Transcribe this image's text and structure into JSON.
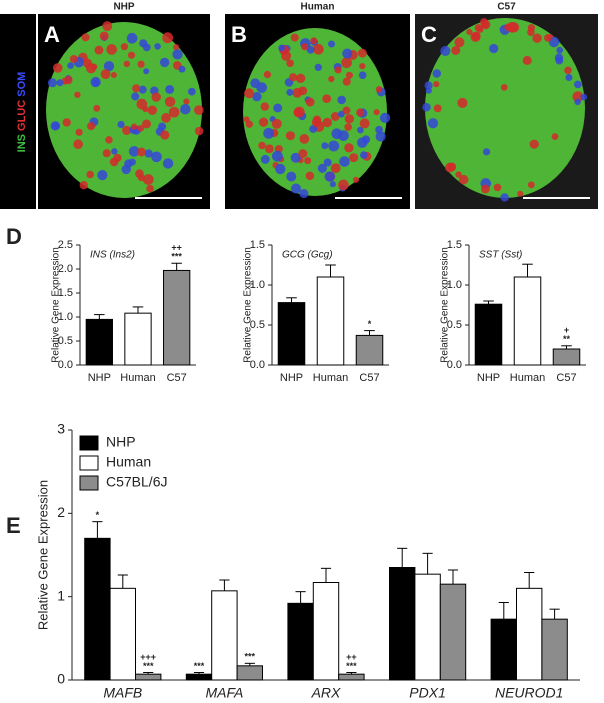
{
  "figure": {
    "panel_labels": [
      "A",
      "B",
      "C",
      "D",
      "E"
    ],
    "image_titles": [
      "NHP",
      "Human",
      "C57"
    ],
    "stain_labels": [
      "INS",
      "GLUC",
      "SOM"
    ]
  },
  "chart_data": [
    {
      "type": "bar",
      "title": "INS (Ins2)",
      "y_label": "Relative Gene Expression",
      "categories": [
        "NHP",
        "Human",
        "C57"
      ],
      "values": [
        0.95,
        1.08,
        1.97
      ],
      "errors": [
        0.1,
        0.13,
        0.15
      ],
      "colors": [
        "#000000",
        "#ffffff",
        "#8c8c8c"
      ],
      "annotations": [
        null,
        null,
        [
          "++",
          "***"
        ]
      ],
      "ylim": [
        0,
        2.5
      ],
      "yticks": [
        {
          "value": 0,
          "label": "0.0"
        },
        0.5,
        {
          "value": 1,
          "label": "1.0"
        },
        1.5,
        {
          "value": 2,
          "label": "2.0"
        },
        2.5
      ]
    },
    {
      "type": "bar",
      "title": "GCG (Gcg)",
      "y_label": "Relative Gene Expression",
      "categories": [
        "NHP",
        "Human",
        "C57"
      ],
      "values": [
        0.78,
        1.1,
        0.37
      ],
      "errors": [
        0.06,
        0.15,
        0.06
      ],
      "colors": [
        "#000000",
        "#ffffff",
        "#8c8c8c"
      ],
      "annotations": [
        null,
        null,
        [
          "*"
        ]
      ],
      "ylim": [
        0,
        1.5
      ],
      "yticks": [
        {
          "value": 0,
          "label": "0.0"
        },
        0.5,
        {
          "value": 1,
          "label": "1.0"
        },
        1.5
      ]
    },
    {
      "type": "bar",
      "title": "SST (Sst)",
      "y_label": "Relative Gene Expression",
      "categories": [
        "NHP",
        "Human",
        "C57"
      ],
      "values": [
        0.76,
        1.1,
        0.2
      ],
      "errors": [
        0.04,
        0.16,
        0.04
      ],
      "colors": [
        "#000000",
        "#ffffff",
        "#8c8c8c"
      ],
      "annotations": [
        null,
        null,
        [
          "+",
          "**"
        ]
      ],
      "ylim": [
        0,
        1.5
      ],
      "yticks": [
        {
          "value": 0,
          "label": "0.0"
        },
        0.5,
        {
          "value": 1,
          "label": "1.0"
        },
        1.5
      ]
    },
    {
      "type": "grouped_bar",
      "y_label": "Relative Gene Expression",
      "legend": "upper-left",
      "categories": [
        "MAFB",
        "MAFA",
        "ARX",
        "PDX1",
        "NEUROD1"
      ],
      "series": [
        {
          "name": "NHP",
          "color": "#000000",
          "values": [
            1.7,
            0.07,
            0.92,
            1.35,
            0.73
          ],
          "errors": [
            0.2,
            0.02,
            0.14,
            0.23,
            0.2
          ],
          "annotations": [
            [
              "*"
            ],
            [
              "***"
            ],
            null,
            null,
            null
          ]
        },
        {
          "name": "Human",
          "color": "#ffffff",
          "values": [
            1.1,
            1.07,
            1.17,
            1.27,
            1.1
          ],
          "errors": [
            0.16,
            0.13,
            0.17,
            0.25,
            0.19
          ],
          "annotations": [
            null,
            null,
            null,
            null,
            null
          ]
        },
        {
          "name": "C57BL/6J",
          "color": "#8c8c8c",
          "values": [
            0.07,
            0.17,
            0.07,
            1.15,
            0.73
          ],
          "errors": [
            0.02,
            0.03,
            0.02,
            0.17,
            0.12
          ],
          "annotations": [
            [
              "+++",
              "***"
            ],
            [
              "***"
            ],
            [
              "++",
              "***"
            ],
            null,
            null
          ]
        }
      ],
      "ylim": [
        0,
        3
      ],
      "yticks": [
        0,
        1,
        2,
        3
      ]
    }
  ]
}
